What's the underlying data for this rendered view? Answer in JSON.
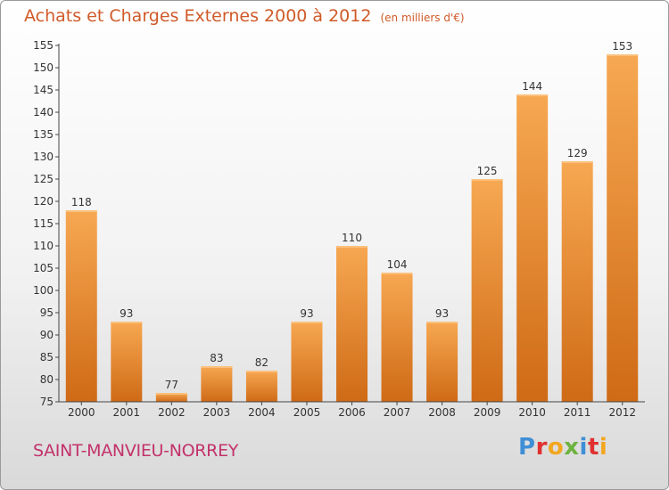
{
  "header": {
    "title": "Achats et Charges Externes 2000 à 2012",
    "subtitle": "(en milliers d'€)"
  },
  "footer": {
    "commune": "SAINT-MANVIEU-NORREY",
    "logo": {
      "letters": [
        "P",
        "r",
        "o",
        "x",
        "i",
        "t",
        "i"
      ]
    }
  },
  "colors": {
    "bar_top": "#f7a852",
    "bar_bottom": "#cf6a16",
    "title": "#d05a28",
    "commune": "#c3326a",
    "logo": [
      "#3f8fd6",
      "#e0312f",
      "#f2a71f",
      "#6db33f",
      "#3f8fd6",
      "#e0312f",
      "#f2a71f"
    ]
  },
  "chart_data": {
    "type": "bar",
    "categories": [
      "2000",
      "2001",
      "2002",
      "2003",
      "2004",
      "2005",
      "2006",
      "2007",
      "2008",
      "2009",
      "2010",
      "2011",
      "2012"
    ],
    "values": [
      118,
      93,
      77,
      83,
      82,
      93,
      110,
      104,
      93,
      125,
      144,
      129,
      153
    ],
    "ylim": [
      75,
      155
    ],
    "yticks": [
      75,
      80,
      85,
      90,
      95,
      100,
      105,
      110,
      115,
      120,
      125,
      130,
      135,
      140,
      145,
      150,
      155
    ],
    "grid": false,
    "data_labels": true
  }
}
